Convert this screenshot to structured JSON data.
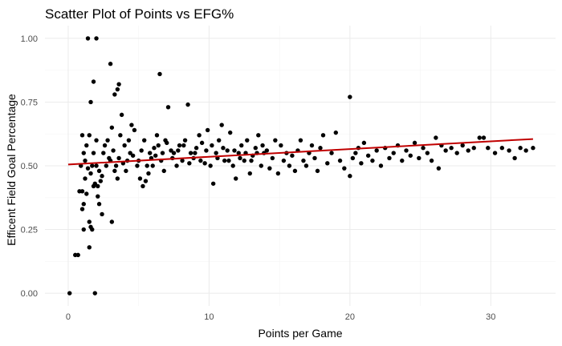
{
  "chart_data": {
    "type": "scatter",
    "title": "Scatter Plot of Points vs EFG%",
    "xlabel": "Points per Game",
    "ylabel": "Efficent Field Goal Percentage",
    "xlim": [
      -1.65,
      34.6
    ],
    "ylim": [
      -0.05,
      1.05
    ],
    "x_ticks": [
      0,
      10,
      20,
      30
    ],
    "x_tick_labels": [
      "0",
      "10",
      "20",
      "30"
    ],
    "y_ticks": [
      0.0,
      0.25,
      0.5,
      0.75,
      1.0
    ],
    "y_tick_labels": [
      "0.00",
      "0.25",
      "0.50",
      "0.75",
      "1.00"
    ],
    "grid": true,
    "trend_line": {
      "color": "#c00000",
      "x": [
        0,
        33
      ],
      "y": [
        0.505,
        0.605
      ]
    },
    "points_color": "#000000",
    "points": [
      [
        0.1,
        0.0
      ],
      [
        0.5,
        0.15
      ],
      [
        0.7,
        0.15
      ],
      [
        1.4,
        1.0
      ],
      [
        2.0,
        1.0
      ],
      [
        1.9,
        0.0
      ],
      [
        3.0,
        0.9
      ],
      [
        1.8,
        0.83
      ],
      [
        2.0,
        0.5
      ],
      [
        1.2,
        0.45
      ],
      [
        1.0,
        0.4
      ],
      [
        1.3,
        0.39
      ],
      [
        0.8,
        0.4
      ],
      [
        1.1,
        0.35
      ],
      [
        1.0,
        0.33
      ],
      [
        1.1,
        0.25
      ],
      [
        1.5,
        0.28
      ],
      [
        1.6,
        0.26
      ],
      [
        1.7,
        0.25
      ],
      [
        1.5,
        0.18
      ],
      [
        3.1,
        0.28
      ],
      [
        1.6,
        0.75
      ],
      [
        1.0,
        0.62
      ],
      [
        1.3,
        0.58
      ],
      [
        1.5,
        0.62
      ],
      [
        1.2,
        0.52
      ],
      [
        1.8,
        0.55
      ],
      [
        2.0,
        0.6
      ],
      [
        2.2,
        0.48
      ],
      [
        2.4,
        0.46
      ],
      [
        1.9,
        0.43
      ],
      [
        2.1,
        0.42
      ],
      [
        2.3,
        0.44
      ],
      [
        2.2,
        0.35
      ],
      [
        2.4,
        0.31
      ],
      [
        2.1,
        0.38
      ],
      [
        1.8,
        0.42
      ],
      [
        1.7,
        0.5
      ],
      [
        2.5,
        0.55
      ],
      [
        2.7,
        0.5
      ],
      [
        2.6,
        0.58
      ],
      [
        2.8,
        0.6
      ],
      [
        3.0,
        0.52
      ],
      [
        3.2,
        0.56
      ],
      [
        3.4,
        0.5
      ],
      [
        3.6,
        0.53
      ],
      [
        3.3,
        0.48
      ],
      [
        3.5,
        0.45
      ],
      [
        3.7,
        0.62
      ],
      [
        3.1,
        0.65
      ],
      [
        3.3,
        0.78
      ],
      [
        3.5,
        0.8
      ],
      [
        3.6,
        0.82
      ],
      [
        3.8,
        0.7
      ],
      [
        4.0,
        0.58
      ],
      [
        4.2,
        0.52
      ],
      [
        4.4,
        0.55
      ],
      [
        4.1,
        0.48
      ],
      [
        4.3,
        0.6
      ],
      [
        4.5,
        0.66
      ],
      [
        4.7,
        0.64
      ],
      [
        4.9,
        0.5
      ],
      [
        5.0,
        0.52
      ],
      [
        5.2,
        0.56
      ],
      [
        5.4,
        0.6
      ],
      [
        5.6,
        0.5
      ],
      [
        5.8,
        0.55
      ],
      [
        5.1,
        0.45
      ],
      [
        5.3,
        0.42
      ],
      [
        5.5,
        0.44
      ],
      [
        5.7,
        0.47
      ],
      [
        6.0,
        0.5
      ],
      [
        6.2,
        0.54
      ],
      [
        6.4,
        0.58
      ],
      [
        6.6,
        0.52
      ],
      [
        6.8,
        0.48
      ],
      [
        6.5,
        0.86
      ],
      [
        6.3,
        0.62
      ],
      [
        6.9,
        0.6
      ],
      [
        7.1,
        0.73
      ],
      [
        7.3,
        0.56
      ],
      [
        7.5,
        0.55
      ],
      [
        7.7,
        0.5
      ],
      [
        7.9,
        0.58
      ],
      [
        8.1,
        0.52
      ],
      [
        8.3,
        0.6
      ],
      [
        8.5,
        0.74
      ],
      [
        8.7,
        0.55
      ],
      [
        8.9,
        0.53
      ],
      [
        9.1,
        0.57
      ],
      [
        9.3,
        0.62
      ],
      [
        9.5,
        0.59
      ],
      [
        9.7,
        0.51
      ],
      [
        9.9,
        0.64
      ],
      [
        10.1,
        0.5
      ],
      [
        10.3,
        0.43
      ],
      [
        10.5,
        0.55
      ],
      [
        10.7,
        0.6
      ],
      [
        10.9,
        0.66
      ],
      [
        11.1,
        0.52
      ],
      [
        11.3,
        0.56
      ],
      [
        11.5,
        0.63
      ],
      [
        11.7,
        0.5
      ],
      [
        11.9,
        0.45
      ],
      [
        12.1,
        0.55
      ],
      [
        12.3,
        0.58
      ],
      [
        12.5,
        0.52
      ],
      [
        12.7,
        0.6
      ],
      [
        12.9,
        0.47
      ],
      [
        13.1,
        0.54
      ],
      [
        13.3,
        0.57
      ],
      [
        13.5,
        0.62
      ],
      [
        13.7,
        0.5
      ],
      [
        13.9,
        0.55
      ],
      [
        14.1,
        0.56
      ],
      [
        14.3,
        0.49
      ],
      [
        14.5,
        0.53
      ],
      [
        14.7,
        0.6
      ],
      [
        14.9,
        0.47
      ],
      [
        15.1,
        0.58
      ],
      [
        15.3,
        0.52
      ],
      [
        15.5,
        0.55
      ],
      [
        15.7,
        0.5
      ],
      [
        15.9,
        0.54
      ],
      [
        16.1,
        0.48
      ],
      [
        16.3,
        0.56
      ],
      [
        16.5,
        0.6
      ],
      [
        16.7,
        0.52
      ],
      [
        16.9,
        0.5
      ],
      [
        17.1,
        0.55
      ],
      [
        17.3,
        0.58
      ],
      [
        17.5,
        0.53
      ],
      [
        17.7,
        0.48
      ],
      [
        17.9,
        0.57
      ],
      [
        18.1,
        0.62
      ],
      [
        18.4,
        0.51
      ],
      [
        18.7,
        0.55
      ],
      [
        19.0,
        0.63
      ],
      [
        19.3,
        0.52
      ],
      [
        19.6,
        0.49
      ],
      [
        20.0,
        0.77
      ],
      [
        20.0,
        0.46
      ],
      [
        20.2,
        0.53
      ],
      [
        20.4,
        0.55
      ],
      [
        20.6,
        0.57
      ],
      [
        20.8,
        0.51
      ],
      [
        21.0,
        0.59
      ],
      [
        21.3,
        0.54
      ],
      [
        21.6,
        0.52
      ],
      [
        21.9,
        0.56
      ],
      [
        22.2,
        0.5
      ],
      [
        22.5,
        0.57
      ],
      [
        22.8,
        0.53
      ],
      [
        23.1,
        0.55
      ],
      [
        23.4,
        0.58
      ],
      [
        23.7,
        0.52
      ],
      [
        24.0,
        0.56
      ],
      [
        24.3,
        0.54
      ],
      [
        24.6,
        0.59
      ],
      [
        24.9,
        0.53
      ],
      [
        25.2,
        0.57
      ],
      [
        25.5,
        0.55
      ],
      [
        25.8,
        0.52
      ],
      [
        26.1,
        0.61
      ],
      [
        26.3,
        0.49
      ],
      [
        26.5,
        0.58
      ],
      [
        26.8,
        0.56
      ],
      [
        27.2,
        0.57
      ],
      [
        27.6,
        0.55
      ],
      [
        28.0,
        0.58
      ],
      [
        28.4,
        0.56
      ],
      [
        28.8,
        0.57
      ],
      [
        29.2,
        0.61
      ],
      [
        29.5,
        0.61
      ],
      [
        29.8,
        0.57
      ],
      [
        30.3,
        0.55
      ],
      [
        30.8,
        0.57
      ],
      [
        31.3,
        0.56
      ],
      [
        31.7,
        0.53
      ],
      [
        32.1,
        0.57
      ],
      [
        32.5,
        0.56
      ],
      [
        33.0,
        0.57
      ],
      [
        0.9,
        0.5
      ],
      [
        1.1,
        0.55
      ],
      [
        1.4,
        0.49
      ],
      [
        1.6,
        0.47
      ],
      [
        2.9,
        0.53
      ],
      [
        3.9,
        0.51
      ],
      [
        4.6,
        0.54
      ],
      [
        5.9,
        0.53
      ],
      [
        6.1,
        0.57
      ],
      [
        6.7,
        0.55
      ],
      [
        7.0,
        0.59
      ],
      [
        7.4,
        0.53
      ],
      [
        7.8,
        0.56
      ],
      [
        8.2,
        0.58
      ],
      [
        8.6,
        0.51
      ],
      [
        9.0,
        0.55
      ],
      [
        9.4,
        0.52
      ],
      [
        9.8,
        0.56
      ],
      [
        10.2,
        0.58
      ],
      [
        10.6,
        0.53
      ],
      [
        11.0,
        0.57
      ],
      [
        11.4,
        0.52
      ],
      [
        11.8,
        0.56
      ],
      [
        12.2,
        0.53
      ],
      [
        12.6,
        0.55
      ],
      [
        13.0,
        0.52
      ],
      [
        13.4,
        0.55
      ],
      [
        13.8,
        0.58
      ]
    ]
  }
}
